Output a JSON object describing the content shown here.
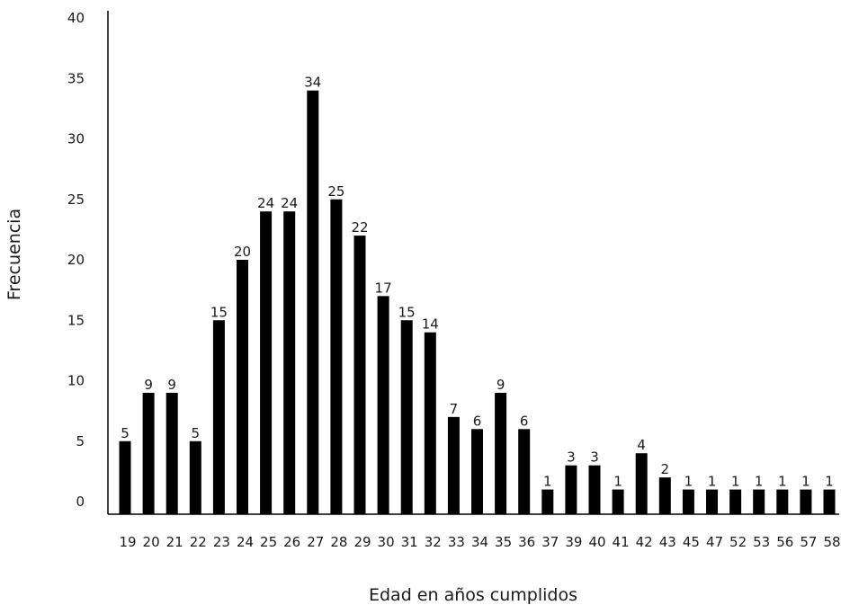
{
  "chart_data": {
    "type": "bar",
    "title": "",
    "xlabel": "Edad en años cumplidos",
    "ylabel": "Frecuencia",
    "ylim": [
      0,
      40
    ],
    "yticks": [
      0,
      5,
      10,
      15,
      20,
      25,
      30,
      35,
      40
    ],
    "grid": false,
    "legend": "none",
    "bar_color": "#000000",
    "categories": [
      "19",
      "20",
      "21",
      "22",
      "23",
      "24",
      "25",
      "26",
      "27",
      "28",
      "29",
      "30",
      "31",
      "32",
      "33",
      "34",
      "35",
      "36",
      "37",
      "39",
      "40",
      "41",
      "42",
      "43",
      "45",
      "47",
      "52",
      "53",
      "56",
      "57",
      "58"
    ],
    "values": [
      5,
      9,
      9,
      5,
      15,
      20,
      24,
      24,
      34,
      25,
      22,
      17,
      15,
      14,
      7,
      6,
      9,
      6,
      1,
      3,
      3,
      1,
      4,
      2,
      1,
      1,
      1,
      1,
      1,
      1,
      1
    ],
    "data_labels": [
      "5",
      "9",
      "9",
      "5",
      "15",
      "20",
      "24",
      "24",
      "34",
      "25",
      "22",
      "17",
      "15",
      "14",
      "7",
      "6",
      "9",
      "6",
      "1",
      "3",
      "3",
      "1",
      "4",
      "2",
      "1",
      "1",
      "1",
      "1",
      "1",
      "1",
      "1"
    ]
  }
}
